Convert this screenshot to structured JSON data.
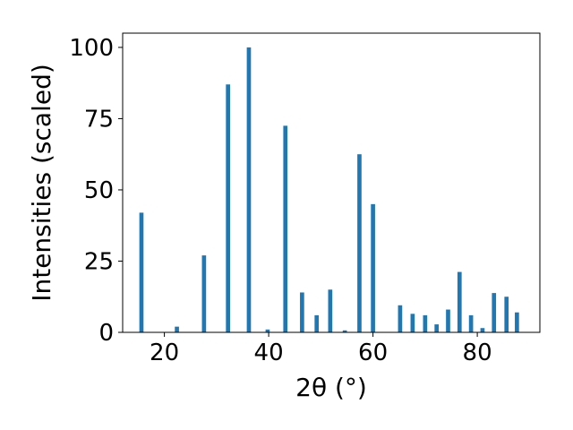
{
  "chart_data": {
    "type": "bar",
    "xlabel": "2θ (°)",
    "ylabel": "Intensities (scaled)",
    "xlim": [
      12,
      92
    ],
    "ylim": [
      0,
      105
    ],
    "x_ticks": [
      20,
      40,
      60,
      80
    ],
    "y_ticks": [
      0,
      25,
      50,
      75,
      100
    ],
    "grid": false,
    "bar_color": "#1f77b4",
    "bar_width": 0.8,
    "x": [
      15.6,
      22.4,
      27.6,
      32.2,
      36.2,
      39.8,
      43.2,
      46.4,
      49.2,
      51.8,
      54.6,
      57.4,
      60.0,
      65.2,
      67.6,
      70.0,
      72.2,
      74.4,
      76.6,
      78.8,
      81.0,
      83.2,
      85.6,
      87.6
    ],
    "values": [
      42,
      2,
      27,
      87,
      100,
      1,
      72.5,
      14,
      6,
      15,
      0.7,
      62.5,
      45,
      9.5,
      6.5,
      6,
      2.8,
      8,
      21.2,
      6,
      1.5,
      13.8,
      12.5,
      7
    ]
  }
}
